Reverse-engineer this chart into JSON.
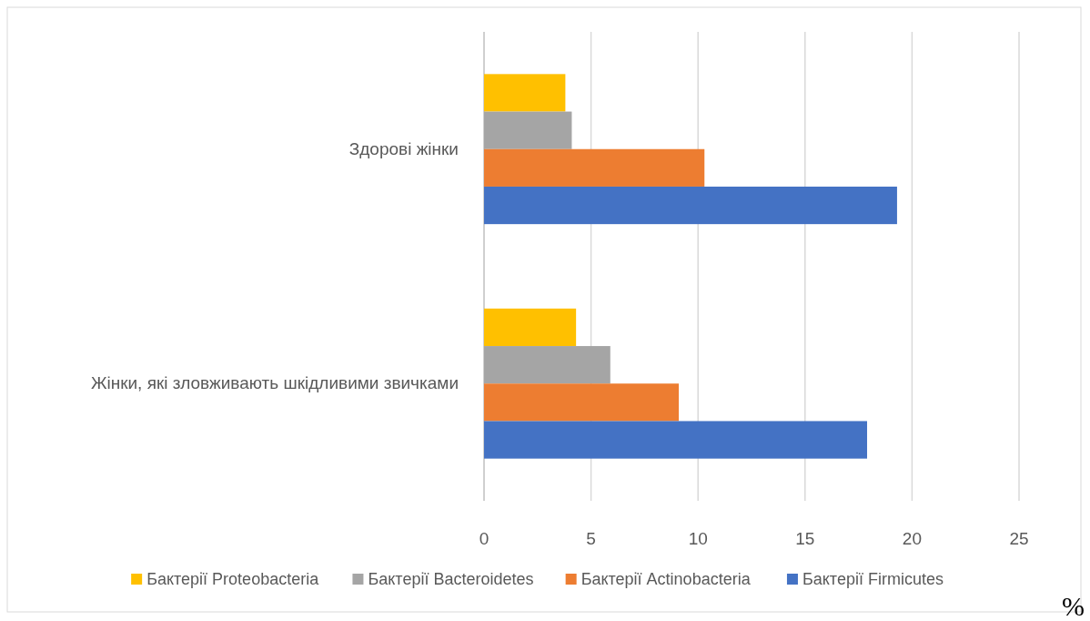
{
  "chart_data": {
    "type": "bar",
    "orientation": "horizontal",
    "categories": [
      "Здорові жінки",
      "Жінки, які зловживають шкідливими звичками"
    ],
    "series": [
      {
        "name": "Бактерії Proteobacteria",
        "color": "#ffc000",
        "values": [
          3.8,
          4.3
        ]
      },
      {
        "name": "Бактерії Bacteroidetes",
        "color": "#a5a5a5",
        "values": [
          4.1,
          5.9
        ]
      },
      {
        "name": "Бактерії Actinobacteria",
        "color": "#ed7d31",
        "values": [
          10.3,
          9.1
        ]
      },
      {
        "name": "Бактерії Firmicutes",
        "color": "#4472c4",
        "values": [
          19.3,
          17.9
        ]
      }
    ],
    "xlim": [
      0,
      25
    ],
    "xticks": [
      0,
      5,
      10,
      15,
      20,
      25
    ],
    "grid": "x",
    "legend": "bottom",
    "xlabel": "%"
  }
}
